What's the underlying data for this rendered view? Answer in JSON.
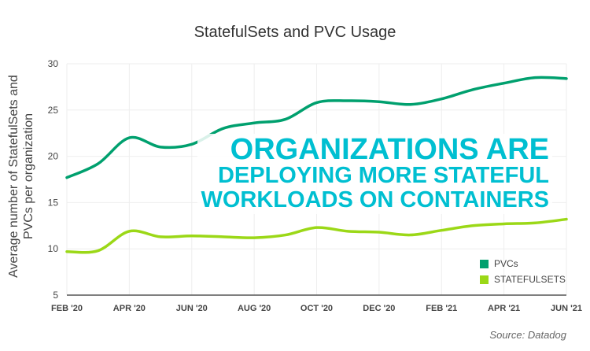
{
  "chart_data": {
    "type": "line",
    "title": "StatefulSets and PVC Usage",
    "ylabel": "Average number of StatefulSets and PVCs per organization",
    "xlabel": "",
    "ylim": [
      5,
      30
    ],
    "yticks": [
      5,
      10,
      15,
      20,
      25,
      30
    ],
    "x": [
      "FEB '20",
      "MAR '20",
      "APR '20",
      "MAY '20",
      "JUN '20",
      "JUL '20",
      "AUG '20",
      "SEP '20",
      "OCT '20",
      "NOV '20",
      "DEC '20",
      "JAN '21",
      "FEB '21",
      "MAR '21",
      "APR '21",
      "MAY '21",
      "JUN '21"
    ],
    "xticks": [
      "FEB '20",
      "APR '20",
      "JUN '20",
      "AUG '20",
      "OCT '20",
      "DEC '20",
      "FEB '21",
      "APR '21",
      "JUN '21"
    ],
    "grid": true,
    "legend_placement": "bottom-right",
    "series": [
      {
        "name": "PVCs",
        "color": "#00a06e",
        "values": [
          17.7,
          19.2,
          22.0,
          21.0,
          21.3,
          23.0,
          23.6,
          24.0,
          25.8,
          26.0,
          25.9,
          25.6,
          26.2,
          27.2,
          27.9,
          28.5,
          28.4
        ]
      },
      {
        "name": "STATEFULSETS",
        "color": "#9bd817",
        "values": [
          9.7,
          9.8,
          11.9,
          11.3,
          11.4,
          11.3,
          11.2,
          11.5,
          12.3,
          11.9,
          11.8,
          11.5,
          12.0,
          12.5,
          12.7,
          12.8,
          13.2
        ]
      }
    ],
    "annotation": [
      "ORGANIZATIONS ARE",
      "DEPLOYING MORE STATEFUL",
      "WORKLOADS ON CONTAINERS"
    ],
    "annotation_color": "#00bfd1",
    "source": "Source: Datadog"
  }
}
